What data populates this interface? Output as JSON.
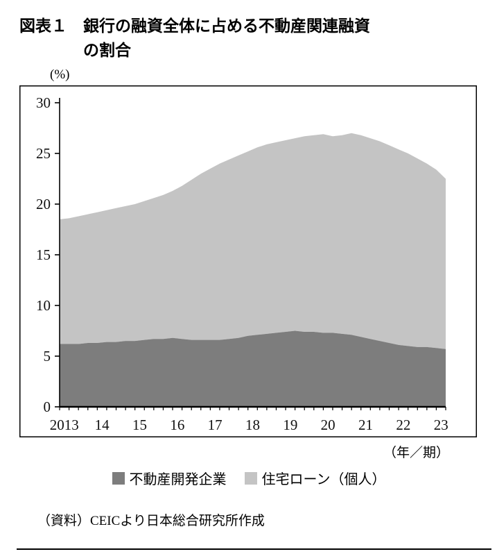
{
  "header": {
    "fig_label": "図表１",
    "title": "銀行の融資全体に占める不動産関連融資の割合"
  },
  "chart_data": {
    "type": "area",
    "stacked": true,
    "title": "銀行の融資全体に占める不動産関連融資の割合",
    "unit_label": "(%)",
    "x_axis_label": "（年／期）",
    "ylim": [
      0,
      30
    ],
    "yticks": [
      0,
      5,
      10,
      15,
      20,
      25,
      30
    ],
    "grid": false,
    "legend_position": "bottom",
    "x_tick_labels": [
      "2013",
      "14",
      "15",
      "16",
      "17",
      "18",
      "19",
      "20",
      "21",
      "22",
      "23"
    ],
    "x": [
      2013.0,
      2013.25,
      2013.5,
      2013.75,
      2014.0,
      2014.25,
      2014.5,
      2014.75,
      2015.0,
      2015.25,
      2015.5,
      2015.75,
      2016.0,
      2016.25,
      2016.5,
      2016.75,
      2017.0,
      2017.25,
      2017.5,
      2017.75,
      2018.0,
      2018.25,
      2018.5,
      2018.75,
      2019.0,
      2019.25,
      2019.5,
      2019.75,
      2020.0,
      2020.25,
      2020.5,
      2020.75,
      2021.0,
      2021.25,
      2021.5,
      2021.75,
      2022.0,
      2022.25,
      2022.5,
      2022.75,
      2023.0,
      2023.25
    ],
    "series": [
      {
        "name": "不動産開発企業",
        "color": "#7d7d7d",
        "values": [
          6.2,
          6.2,
          6.2,
          6.3,
          6.3,
          6.4,
          6.4,
          6.5,
          6.5,
          6.6,
          6.7,
          6.7,
          6.8,
          6.7,
          6.6,
          6.6,
          6.6,
          6.6,
          6.7,
          6.8,
          7.0,
          7.1,
          7.2,
          7.3,
          7.4,
          7.5,
          7.4,
          7.4,
          7.3,
          7.3,
          7.2,
          7.1,
          6.9,
          6.7,
          6.5,
          6.3,
          6.1,
          6.0,
          5.9,
          5.9,
          5.8,
          5.7
        ]
      },
      {
        "name": "住宅ローン（個人）",
        "color": "#c4c4c4",
        "values": [
          12.3,
          12.4,
          12.6,
          12.7,
          12.9,
          13.0,
          13.2,
          13.3,
          13.5,
          13.7,
          13.9,
          14.2,
          14.5,
          15.1,
          15.8,
          16.4,
          16.9,
          17.4,
          17.7,
          18.0,
          18.2,
          18.5,
          18.7,
          18.8,
          18.9,
          19.0,
          19.3,
          19.4,
          19.6,
          19.4,
          19.6,
          19.9,
          19.9,
          19.8,
          19.7,
          19.5,
          19.3,
          19.0,
          18.6,
          18.1,
          17.6,
          16.8
        ]
      }
    ]
  },
  "footer": {
    "source": "（資料）CEICより日本総合研究所作成"
  }
}
